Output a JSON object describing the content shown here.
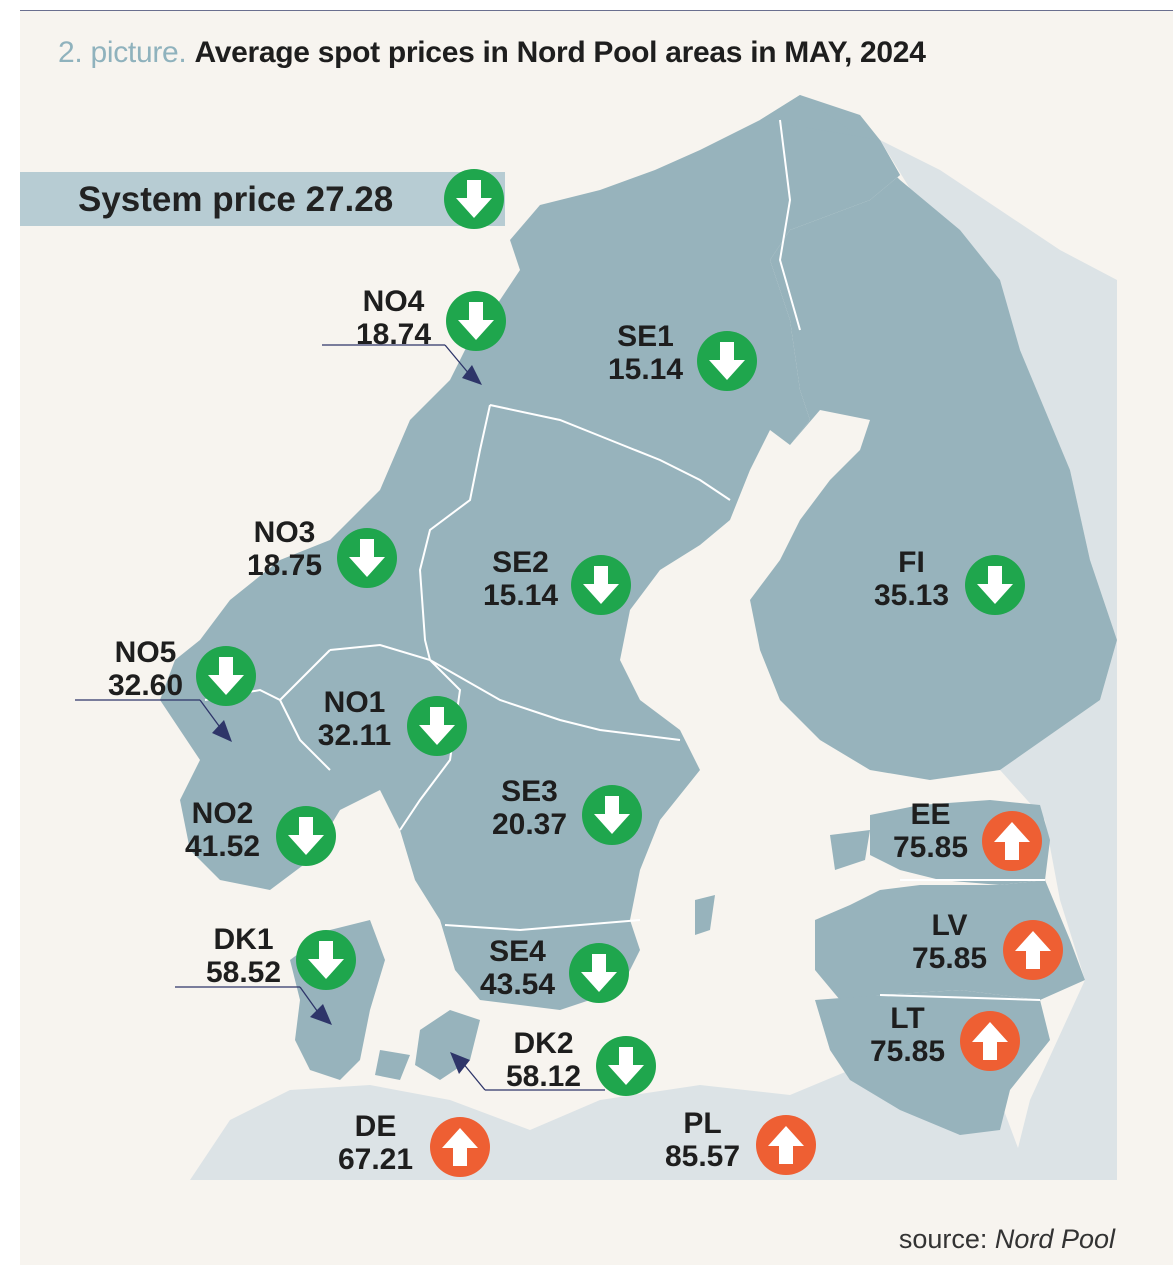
{
  "title": {
    "prefix": "2. picture.",
    "main": "Average spot prices in Nord Pool areas in MAY, 2024"
  },
  "system_price": {
    "label": "System price 27.28",
    "trend": "down"
  },
  "colors": {
    "land_nordic": "#97b3bc",
    "land_other": "#dce3e6",
    "sea": "#f7f4ef",
    "border": "#ffffff",
    "down": "#1fa64d",
    "up": "#ee5f33",
    "bar": "#b7ccd3"
  },
  "areas": [
    {
      "code": "NO4",
      "price": "18.74",
      "trend": "down"
    },
    {
      "code": "SE1",
      "price": "15.14",
      "trend": "down"
    },
    {
      "code": "NO3",
      "price": "18.75",
      "trend": "down"
    },
    {
      "code": "SE2",
      "price": "15.14",
      "trend": "down"
    },
    {
      "code": "FI",
      "price": "35.13",
      "trend": "down"
    },
    {
      "code": "NO5",
      "price": "32.60",
      "trend": "down"
    },
    {
      "code": "NO1",
      "price": "32.11",
      "trend": "down"
    },
    {
      "code": "SE3",
      "price": "20.37",
      "trend": "down"
    },
    {
      "code": "NO2",
      "price": "41.52",
      "trend": "down"
    },
    {
      "code": "EE",
      "price": "75.85",
      "trend": "up"
    },
    {
      "code": "LV",
      "price": "75.85",
      "trend": "up"
    },
    {
      "code": "DK1",
      "price": "58.52",
      "trend": "down"
    },
    {
      "code": "SE4",
      "price": "43.54",
      "trend": "down"
    },
    {
      "code": "LT",
      "price": "75.85",
      "trend": "up"
    },
    {
      "code": "DK2",
      "price": "58.12",
      "trend": "down"
    },
    {
      "code": "DE",
      "price": "67.21",
      "trend": "up"
    },
    {
      "code": "PL",
      "price": "85.57",
      "trend": "up"
    }
  ],
  "source": {
    "prefix": "source:",
    "name": "Nord Pool"
  }
}
